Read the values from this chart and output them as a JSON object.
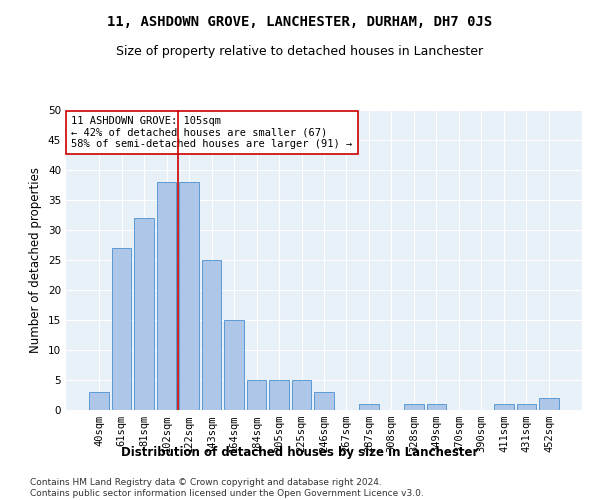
{
  "title": "11, ASHDOWN GROVE, LANCHESTER, DURHAM, DH7 0JS",
  "subtitle": "Size of property relative to detached houses in Lanchester",
  "xlabel": "Distribution of detached houses by size in Lanchester",
  "ylabel": "Number of detached properties",
  "bar_labels": [
    "40sqm",
    "61sqm",
    "81sqm",
    "102sqm",
    "122sqm",
    "143sqm",
    "164sqm",
    "184sqm",
    "205sqm",
    "225sqm",
    "246sqm",
    "267sqm",
    "287sqm",
    "308sqm",
    "328sqm",
    "349sqm",
    "370sqm",
    "390sqm",
    "411sqm",
    "431sqm",
    "452sqm"
  ],
  "bar_values": [
    3,
    27,
    32,
    38,
    38,
    25,
    15,
    5,
    5,
    5,
    3,
    0,
    1,
    0,
    1,
    1,
    0,
    0,
    1,
    1,
    2
  ],
  "bar_color": "#aec6e8",
  "bar_edgecolor": "#5b9bd5",
  "vline_x": 3.5,
  "annotation_line1": "11 ASHDOWN GROVE: 105sqm",
  "annotation_line2": "← 42% of detached houses are smaller (67)",
  "annotation_line3": "58% of semi-detached houses are larger (91) →",
  "annotation_box_color": "#ffffff",
  "annotation_box_edgecolor": "#cc0000",
  "vline_color": "#cc0000",
  "ylim": [
    0,
    50
  ],
  "yticks": [
    0,
    5,
    10,
    15,
    20,
    25,
    30,
    35,
    40,
    45,
    50
  ],
  "bg_color": "#e8f0f8",
  "footer": "Contains HM Land Registry data © Crown copyright and database right 2024.\nContains public sector information licensed under the Open Government Licence v3.0.",
  "title_fontsize": 10,
  "subtitle_fontsize": 9,
  "xlabel_fontsize": 8.5,
  "ylabel_fontsize": 8.5,
  "tick_fontsize": 7.5,
  "annotation_fontsize": 7.5,
  "footer_fontsize": 6.5
}
